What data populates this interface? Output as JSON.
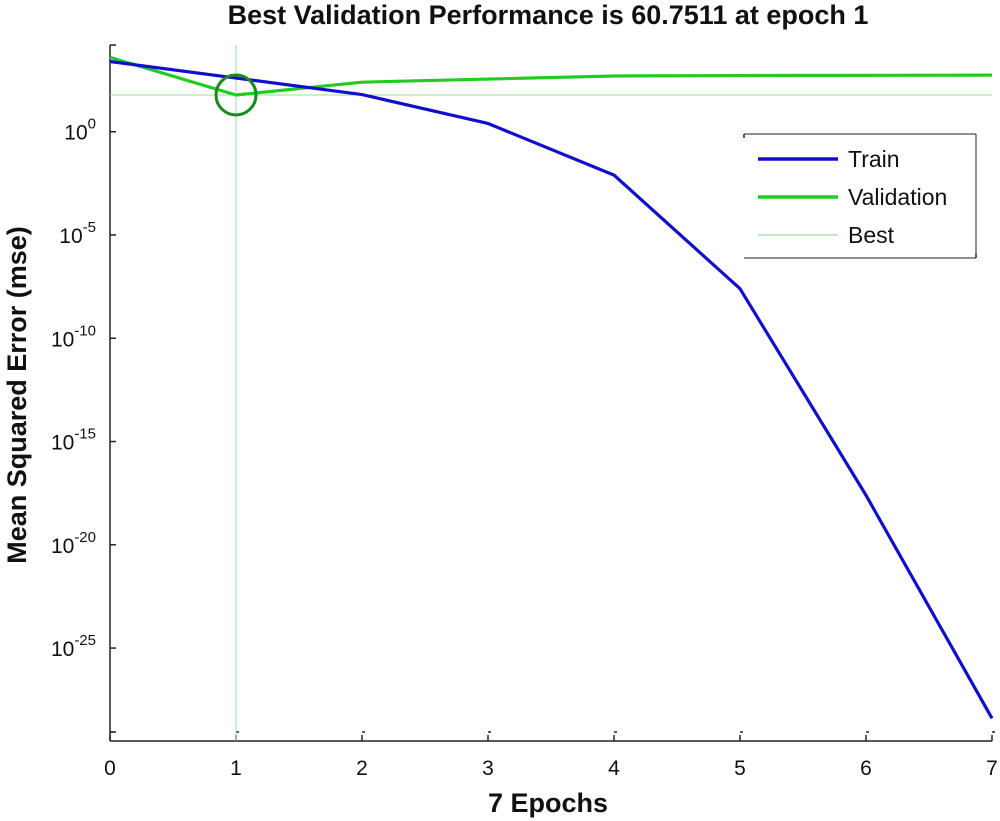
{
  "chart_data": {
    "type": "line",
    "title": "Best Validation Performance is 60.7511 at epoch 1",
    "xlabel": "7 Epochs",
    "ylabel": "Mean Squared Error  (mse)",
    "xlim": [
      0,
      7
    ],
    "ylim_log10": [
      -29.5,
      4.2
    ],
    "yscale": "log",
    "x_ticks": [
      "0",
      "1",
      "2",
      "3",
      "4",
      "5",
      "6",
      "7"
    ],
    "y_ticks": [
      {
        "base": "10",
        "exp": "0",
        "log10": 0
      },
      {
        "base": "10",
        "exp": "-5",
        "log10": -5
      },
      {
        "base": "10",
        "exp": "-10",
        "log10": -10
      },
      {
        "base": "10",
        "exp": "-15",
        "log10": -15
      },
      {
        "base": "10",
        "exp": "-20",
        "log10": -20
      },
      {
        "base": "10",
        "exp": "-25",
        "log10": -25
      }
    ],
    "series": [
      {
        "name": "Train",
        "color": "#1010cc",
        "x": [
          0,
          1,
          2,
          3,
          4,
          5,
          6,
          7
        ],
        "log10_y": [
          3.4,
          2.6,
          1.8,
          0.4,
          -2.1,
          -7.6,
          -17.6,
          -28.4
        ]
      },
      {
        "name": "Validation",
        "color": "#22cc22",
        "x": [
          0,
          1,
          2,
          3,
          4,
          5,
          6,
          7
        ],
        "log10_y": [
          3.6,
          1.78,
          2.4,
          2.55,
          2.7,
          2.72,
          2.73,
          2.74
        ]
      },
      {
        "name": "Best",
        "color": "#99dd99"
      }
    ],
    "best": {
      "epoch": 1,
      "value": 60.7511,
      "log10_y": 1.78
    },
    "legend_position": "top-right",
    "grid": false
  }
}
